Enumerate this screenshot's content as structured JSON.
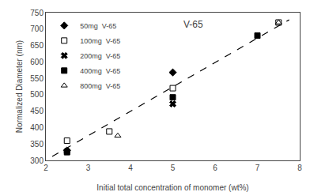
{
  "chart_data": {
    "type": "scatter",
    "title": "V-65",
    "x_label": "Initial total concentration of monomer (wt%)",
    "y_label": "Normalized Diameter (nm)",
    "xlim": [
      2,
      8
    ],
    "ylim": [
      300,
      750
    ],
    "xticks": [
      2,
      3,
      4,
      5,
      6,
      7,
      8
    ],
    "yticks": [
      300,
      350,
      400,
      450,
      500,
      550,
      600,
      650,
      700,
      750
    ],
    "grid": false,
    "legend": "upper left",
    "series": [
      {
        "type": "line",
        "line_style": "dashed",
        "color": "black",
        "x": [
          2.15,
          7.75
        ],
        "values": [
          312,
          728
        ]
      },
      {
        "name": "50mg  V-65",
        "type": "scatter",
        "marker": "diamond",
        "color": "black",
        "x": [
          2.5,
          5.0
        ],
        "values": [
          330,
          568
        ]
      },
      {
        "name": "100mg  V-65",
        "type": "scatter",
        "marker": "square-open",
        "color": "black",
        "x": [
          2.5,
          3.5,
          5.0,
          7.5
        ],
        "values": [
          360,
          388,
          520,
          720
        ]
      },
      {
        "name": "200mg  V-65",
        "type": "scatter",
        "marker": "x",
        "color": "black",
        "x": [
          2.5,
          5.0
        ],
        "values": [
          328,
          472
        ]
      },
      {
        "name": "400mg  V-65",
        "type": "scatter",
        "marker": "square",
        "color": "black",
        "x": [
          2.5,
          5.0,
          7.0
        ],
        "values": [
          325,
          492,
          680
        ]
      },
      {
        "name": "800mg  V-65",
        "type": "scatter",
        "marker": "triangle-up-open",
        "color": "black",
        "x": [
          3.7,
          7.5
        ],
        "values": [
          375,
          720
        ]
      }
    ]
  }
}
